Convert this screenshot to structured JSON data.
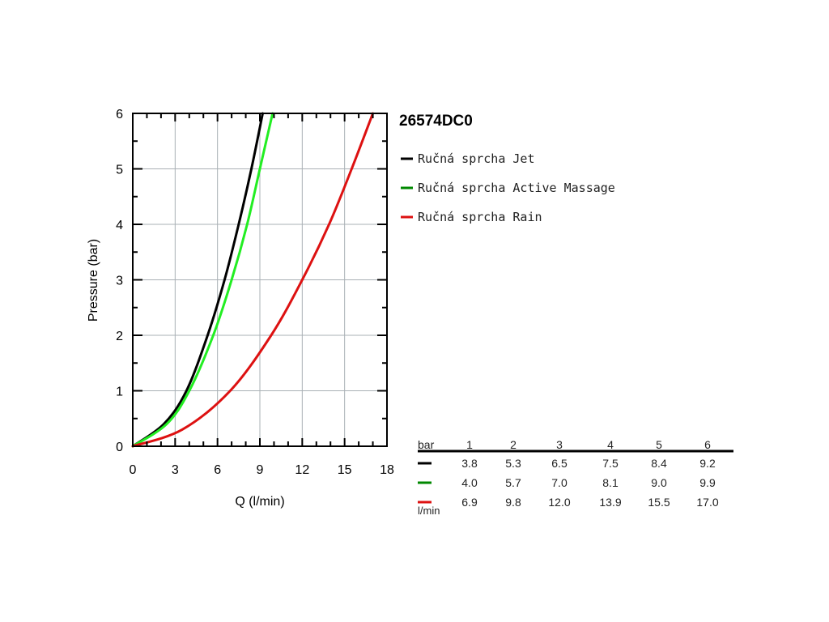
{
  "chart_data": {
    "type": "line",
    "title": "26574DC0",
    "xlabel": "Q (l/min)",
    "ylabel": "Pressure (bar)",
    "xlim": [
      0,
      18
    ],
    "ylim": [
      0,
      6
    ],
    "x_ticks": [
      "0",
      "3",
      "6",
      "9",
      "12",
      "15",
      "18"
    ],
    "y_ticks": [
      "0",
      "1",
      "2",
      "3",
      "4",
      "5",
      "6"
    ],
    "grid": true,
    "legend_position": "right",
    "series": [
      {
        "name": "Ručná sprcha Jet",
        "color": "#000000",
        "points": [
          [
            0,
            0
          ],
          [
            2.2,
            0.4
          ],
          [
            3.8,
            1
          ],
          [
            5.3,
            2
          ],
          [
            6.5,
            3
          ],
          [
            7.5,
            4
          ],
          [
            8.4,
            5
          ],
          [
            9.2,
            6
          ]
        ]
      },
      {
        "name": "Ručná sprcha Active Massage",
        "color": "#22ee22",
        "points": [
          [
            0,
            0
          ],
          [
            2.4,
            0.4
          ],
          [
            4.0,
            1
          ],
          [
            5.7,
            2
          ],
          [
            7.0,
            3
          ],
          [
            8.1,
            4
          ],
          [
            9.0,
            5
          ],
          [
            9.9,
            6
          ]
        ]
      },
      {
        "name": "Ručná sprcha Rain",
        "color": "#dd1111",
        "points": [
          [
            0,
            0
          ],
          [
            3.5,
            0.3
          ],
          [
            6.9,
            1
          ],
          [
            9.8,
            2
          ],
          [
            12.0,
            3
          ],
          [
            13.9,
            4
          ],
          [
            15.5,
            5
          ],
          [
            17.0,
            6
          ]
        ]
      }
    ],
    "table": {
      "header_label": "bar",
      "unit_label": "l/min",
      "columns": [
        "1",
        "2",
        "3",
        "4",
        "5",
        "6"
      ],
      "rows": [
        {
          "color": "#000000",
          "values": [
            "3.8",
            "5.3",
            "6.5",
            "7.5",
            "8.4",
            "9.2"
          ]
        },
        {
          "color": "#008800",
          "values": [
            "4.0",
            "5.7",
            "7.0",
            "8.1",
            "9.0",
            "9.9"
          ]
        },
        {
          "color": "#dd1111",
          "values": [
            "6.9",
            "9.8",
            "12.0",
            "13.9",
            "15.5",
            "17.0"
          ]
        }
      ]
    }
  }
}
